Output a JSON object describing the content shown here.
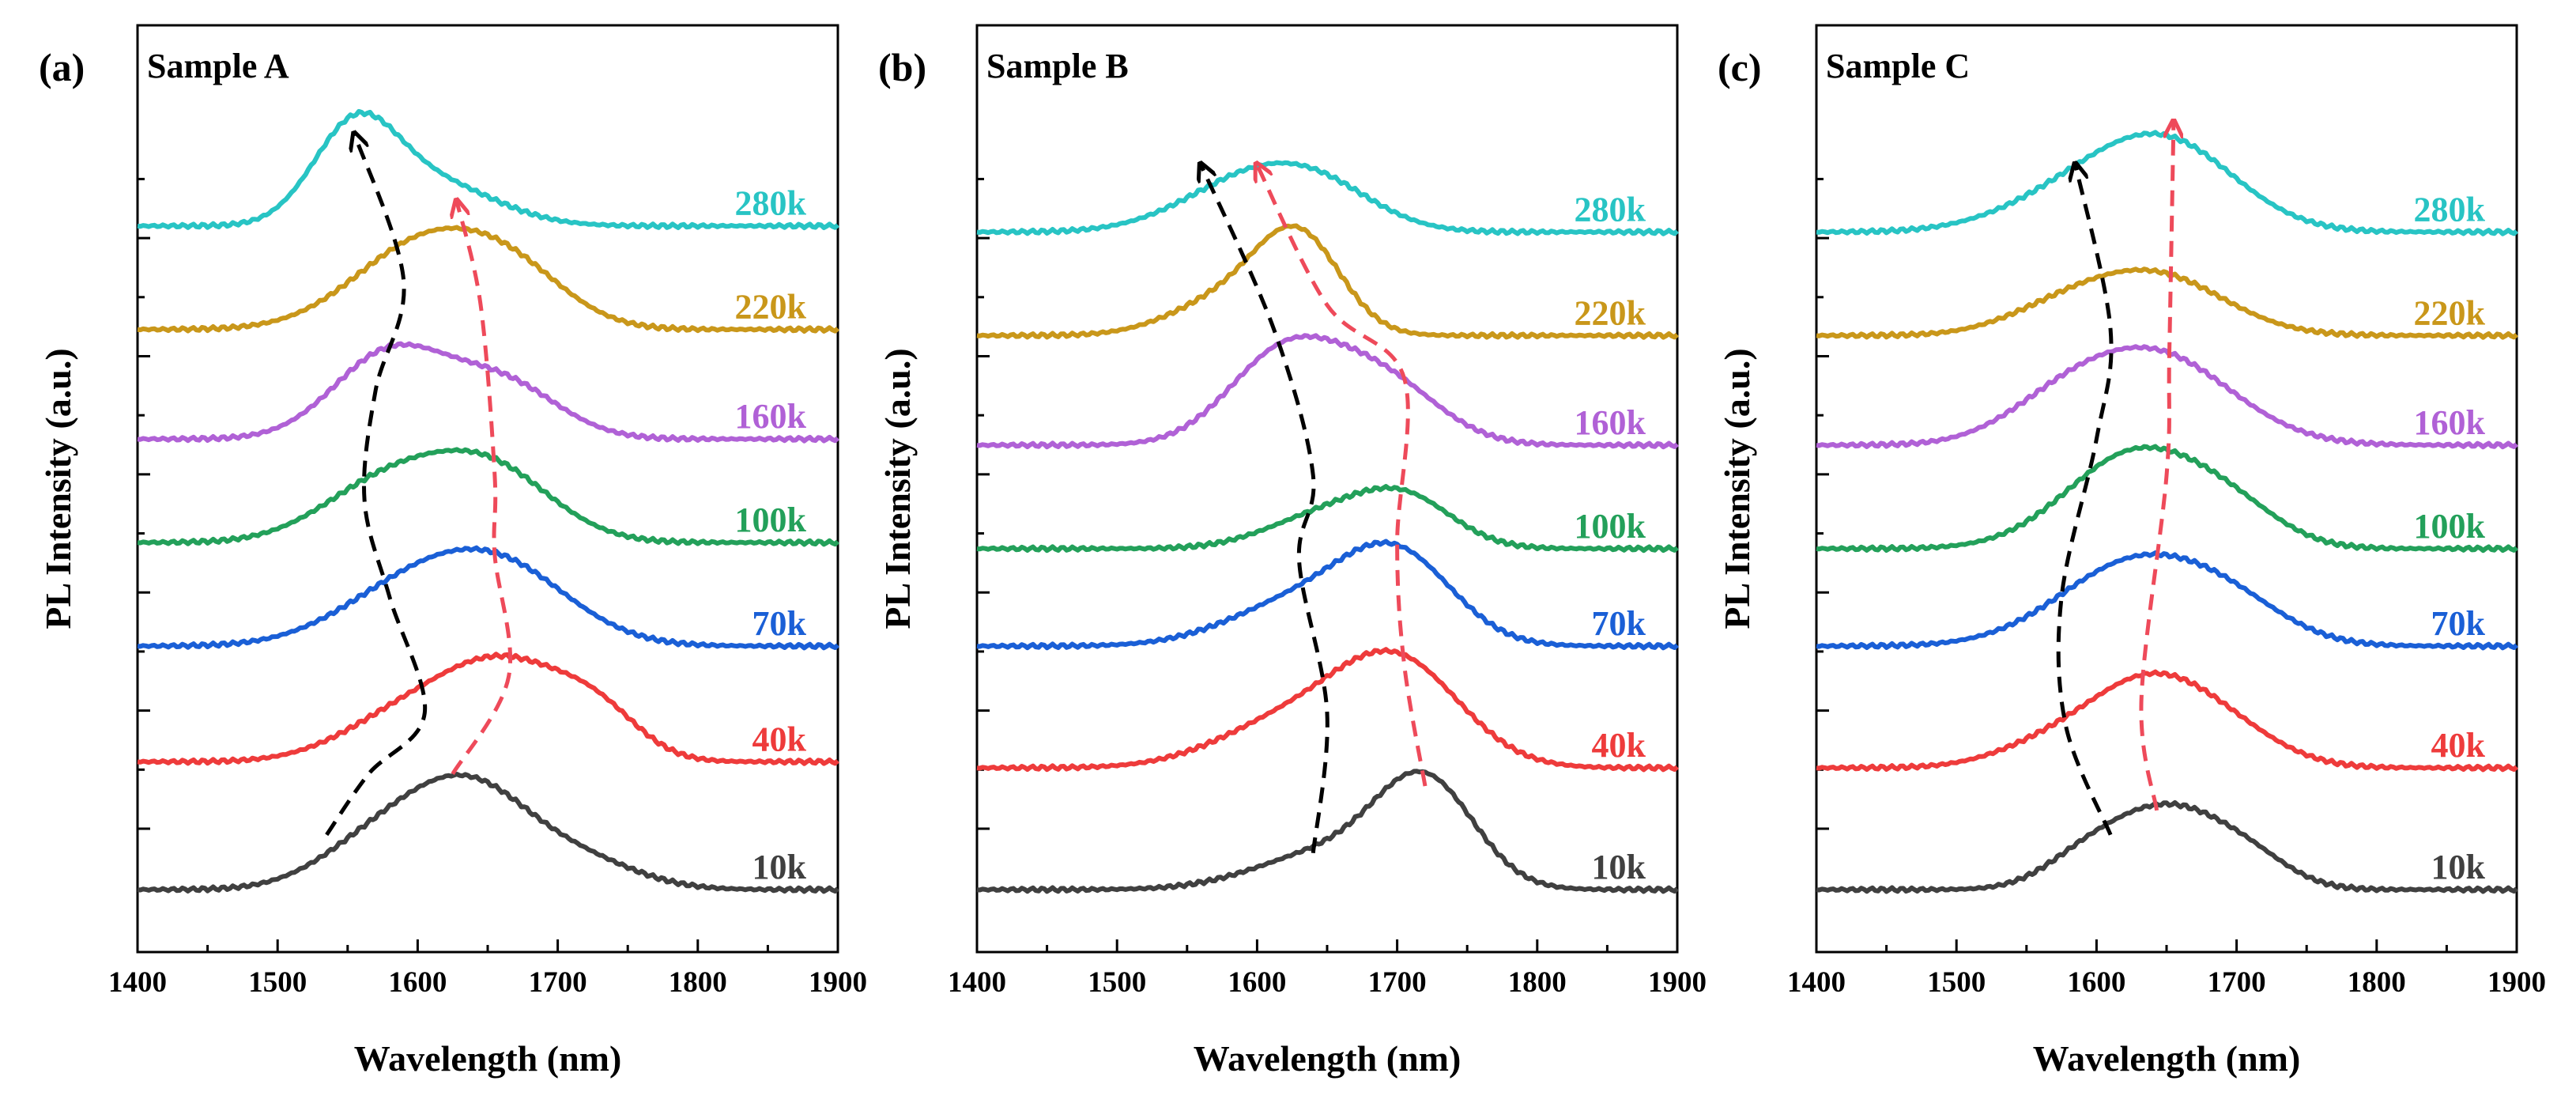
{
  "figure": {
    "xlabel": "Wavelength (nm)",
    "ylabel": "PL Intensity (a.u.)"
  },
  "colors": {
    "10k": "#404040",
    "40k": "#ee3b3b",
    "70k": "#1a5fd6",
    "100k": "#23a05a",
    "160k": "#b061d6",
    "220k": "#c9971a",
    "280k": "#28c4c4",
    "arrow_black": "#000000",
    "arrow_red": "#ee4a5a"
  },
  "chart_data": [
    {
      "type": "line",
      "panel_label": "(a)",
      "title": "Sample A",
      "xlabel": "Wavelength (nm)",
      "ylabel": "PL Intensity (a.u.)",
      "xlim": [
        1400,
        1900
      ],
      "xticks": [
        1400,
        1500,
        1600,
        1700,
        1800,
        1900
      ],
      "ylim": [
        0,
        5.3
      ],
      "series": [
        {
          "name": "10k",
          "baseline": 0.0,
          "peaks": [
            {
              "c": 1635,
              "a": 0.85,
              "w": 45
            },
            {
              "c": 1565,
              "a": 0.3,
              "w": 40
            },
            {
              "c": 1720,
              "a": 0.2,
              "w": 40
            }
          ]
        },
        {
          "name": "40k",
          "baseline": 1.05,
          "peaks": [
            {
              "c": 1665,
              "a": 0.75,
              "w": 45
            },
            {
              "c": 1590,
              "a": 0.35,
              "w": 45
            },
            {
              "c": 1730,
              "a": 0.3,
              "w": 30
            }
          ]
        },
        {
          "name": "70k",
          "baseline": 2.0,
          "peaks": [
            {
              "c": 1660,
              "a": 0.6,
              "w": 50
            },
            {
              "c": 1590,
              "a": 0.4,
              "w": 50
            }
          ]
        },
        {
          "name": "100k",
          "baseline": 2.85,
          "peaks": [
            {
              "c": 1650,
              "a": 0.6,
              "w": 45
            },
            {
              "c": 1575,
              "a": 0.45,
              "w": 45
            }
          ]
        },
        {
          "name": "160k",
          "baseline": 3.7,
          "peaks": [
            {
              "c": 1580,
              "a": 0.7,
              "w": 40
            },
            {
              "c": 1660,
              "a": 0.45,
              "w": 40
            }
          ]
        },
        {
          "name": "220k",
          "baseline": 4.6,
          "peaks": [
            {
              "c": 1605,
              "a": 0.7,
              "w": 50
            },
            {
              "c": 1670,
              "a": 0.35,
              "w": 40
            }
          ]
        },
        {
          "name": "280k",
          "baseline": 5.45,
          "peaks": [
            {
              "c": 1555,
              "a": 0.75,
              "w": 30
            },
            {
              "c": 1610,
              "a": 0.35,
              "w": 45
            }
          ]
        }
      ],
      "arrow_black": [
        [
          1535,
          0.45
        ],
        [
          1565,
          0.95
        ],
        [
          1605,
          1.45
        ],
        [
          1580,
          2.4
        ],
        [
          1562,
          3.2
        ],
        [
          1570,
          4.1
        ],
        [
          1590,
          5.0
        ],
        [
          1555,
          6.2
        ]
      ],
      "arrow_red": [
        [
          1625,
          0.95
        ],
        [
          1665,
          1.75
        ],
        [
          1655,
          2.75
        ],
        [
          1655,
          3.4
        ],
        [
          1645,
          4.8
        ],
        [
          1628,
          5.65
        ]
      ]
    },
    {
      "type": "line",
      "panel_label": "(b)",
      "title": "Sample B",
      "xlabel": "Wavelength (nm)",
      "ylabel": "PL Intensity (a.u.)",
      "xlim": [
        1400,
        1900
      ],
      "xticks": [
        1400,
        1500,
        1600,
        1700,
        1800,
        1900
      ],
      "ylim": [
        0,
        5.3
      ],
      "series": [
        {
          "name": "10k",
          "baseline": 0.0,
          "peaks": [
            {
              "c": 1720,
              "a": 0.85,
              "w": 35
            },
            {
              "c": 1650,
              "a": 0.3,
              "w": 50
            }
          ]
        },
        {
          "name": "40k",
          "baseline": 1.0,
          "peaks": [
            {
              "c": 1700,
              "a": 0.85,
              "w": 45
            },
            {
              "c": 1620,
              "a": 0.35,
              "w": 50
            }
          ]
        },
        {
          "name": "70k",
          "baseline": 2.0,
          "peaks": [
            {
              "c": 1700,
              "a": 0.7,
              "w": 40
            },
            {
              "c": 1630,
              "a": 0.35,
              "w": 50
            }
          ]
        },
        {
          "name": "100k",
          "baseline": 2.8,
          "peaks": [
            {
              "c": 1705,
              "a": 0.4,
              "w": 35
            },
            {
              "c": 1645,
              "a": 0.25,
              "w": 40
            }
          ]
        },
        {
          "name": "160k",
          "baseline": 3.65,
          "peaks": [
            {
              "c": 1620,
              "a": 0.75,
              "w": 40
            },
            {
              "c": 1690,
              "a": 0.5,
              "w": 40
            }
          ]
        },
        {
          "name": "220k",
          "baseline": 4.55,
          "peaks": [
            {
              "c": 1630,
              "a": 0.75,
              "w": 30
            },
            {
              "c": 1580,
              "a": 0.3,
              "w": 40
            }
          ]
        },
        {
          "name": "280k",
          "baseline": 5.4,
          "peaks": [
            {
              "c": 1600,
              "a": 0.45,
              "w": 50
            },
            {
              "c": 1650,
              "a": 0.2,
              "w": 40
            }
          ]
        }
      ],
      "arrow_black": [
        [
          1640,
          0.3
        ],
        [
          1650,
          1.45
        ],
        [
          1630,
          2.7
        ],
        [
          1640,
          3.4
        ],
        [
          1612,
          4.6
        ],
        [
          1560,
          5.95
        ]
      ],
      "arrow_red": [
        [
          1720,
          0.85
        ],
        [
          1705,
          1.85
        ],
        [
          1700,
          2.85
        ],
        [
          1705,
          4.2
        ],
        [
          1650,
          4.8
        ],
        [
          1600,
          5.95
        ]
      ]
    },
    {
      "type": "line",
      "panel_label": "(c)",
      "title": "Sample C",
      "xlabel": "Wavelength (nm)",
      "ylabel": "PL Intensity (a.u.)",
      "xlim": [
        1400,
        1900
      ],
      "xticks": [
        1400,
        1500,
        1600,
        1700,
        1800,
        1900
      ],
      "ylim": [
        0,
        5.3
      ],
      "series": [
        {
          "name": "10k",
          "baseline": 0.0,
          "peaks": [
            {
              "c": 1650,
              "a": 0.65,
              "w": 40
            },
            {
              "c": 1590,
              "a": 0.2,
              "w": 30
            },
            {
              "c": 1710,
              "a": 0.2,
              "w": 30
            }
          ]
        },
        {
          "name": "40k",
          "baseline": 1.0,
          "peaks": [
            {
              "c": 1635,
              "a": 0.6,
              "w": 40
            },
            {
              "c": 1690,
              "a": 0.3,
              "w": 40
            },
            {
              "c": 1570,
              "a": 0.2,
              "w": 40
            }
          ]
        },
        {
          "name": "70k",
          "baseline": 2.0,
          "peaks": [
            {
              "c": 1630,
              "a": 0.7,
              "w": 55
            },
            {
              "c": 1700,
              "a": 0.2,
              "w": 40
            }
          ]
        },
        {
          "name": "100k",
          "baseline": 2.8,
          "peaks": [
            {
              "c": 1630,
              "a": 0.8,
              "w": 50
            },
            {
              "c": 1700,
              "a": 0.2,
              "w": 35
            }
          ]
        },
        {
          "name": "160k",
          "baseline": 3.65,
          "peaks": [
            {
              "c": 1640,
              "a": 0.75,
              "w": 55
            },
            {
              "c": 1570,
              "a": 0.2,
              "w": 40
            }
          ]
        },
        {
          "name": "220k",
          "baseline": 4.55,
          "peaks": [
            {
              "c": 1640,
              "a": 0.5,
              "w": 50
            },
            {
              "c": 1570,
              "a": 0.15,
              "w": 40
            }
          ]
        },
        {
          "name": "280k",
          "baseline": 5.4,
          "peaks": [
            {
              "c": 1650,
              "a": 0.7,
              "w": 50
            },
            {
              "c": 1580,
              "a": 0.25,
              "w": 50
            }
          ]
        }
      ],
      "arrow_black": [
        [
          1610,
          0.45
        ],
        [
          1578,
          1.35
        ],
        [
          1575,
          2.4
        ],
        [
          1600,
          3.7
        ],
        [
          1610,
          4.6
        ],
        [
          1585,
          5.95
        ]
      ],
      "arrow_red": [
        [
          1643,
          0.65
        ],
        [
          1632,
          1.55
        ],
        [
          1650,
          3.4
        ],
        [
          1652,
          4.4
        ],
        [
          1655,
          6.3
        ]
      ]
    }
  ]
}
